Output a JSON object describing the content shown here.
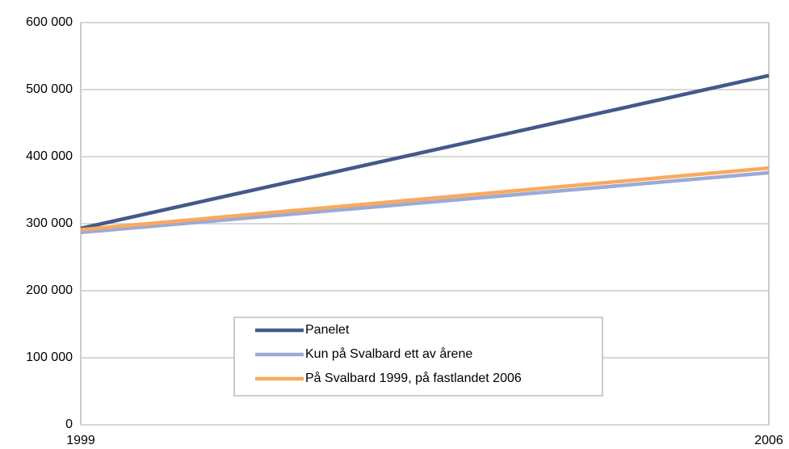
{
  "chart_data": {
    "type": "line",
    "categories": [
      "1999",
      "2006"
    ],
    "series": [
      {
        "name": "Panelet",
        "color": "#44598a",
        "values": [
          293000,
          521000
        ]
      },
      {
        "name": "Kun på Svalbard ett av årene",
        "color": "#9caad6",
        "values": [
          287000,
          376000
        ]
      },
      {
        "name": "På Svalbard 1999, på fastlandet 2006",
        "color": "#f9a95e",
        "values": [
          291000,
          383000
        ]
      }
    ],
    "ylim": [
      0,
      600000
    ],
    "yticks": [
      0,
      {
        "value": 100000,
        "label": "100 000"
      },
      {
        "value": 200000,
        "label": "200 000"
      },
      {
        "value": 300000,
        "label": "300 000"
      },
      {
        "value": 400000,
        "label": "400 000"
      },
      {
        "value": 500000,
        "label": "500 000"
      },
      {
        "value": 600000,
        "label": "600 000"
      }
    ],
    "grid": true
  }
}
